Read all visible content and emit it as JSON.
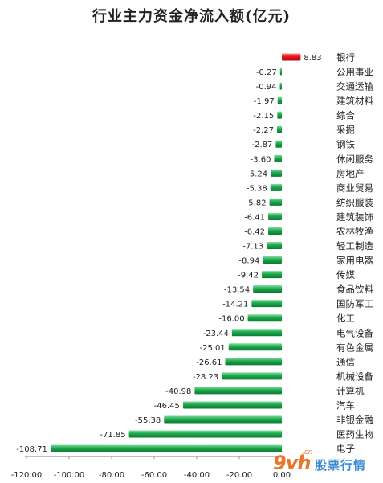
{
  "chart_data": {
    "type": "bar",
    "orientation": "horizontal",
    "title": "行业主力资金净流入额(亿元)",
    "categories": [
      "银行",
      "公用事业",
      "交通运输",
      "建筑材料",
      "综合",
      "采掘",
      "钢铁",
      "休闲服务",
      "房地产",
      "商业贸易",
      "纺织服装",
      "建筑装饰",
      "农林牧渔",
      "轻工制造",
      "家用电器",
      "传媒",
      "食品饮料",
      "国防军工",
      "化工",
      "电气设备",
      "有色金属",
      "通信",
      "机械设备",
      "计算机",
      "汽车",
      "非银金融",
      "医药生物",
      "电子"
    ],
    "values": [
      8.83,
      -0.27,
      -0.94,
      -1.97,
      -2.15,
      -2.27,
      -2.87,
      -3.6,
      -5.24,
      -5.38,
      -5.82,
      -6.41,
      -6.42,
      -7.13,
      -8.94,
      -9.42,
      -13.54,
      -14.21,
      -16.0,
      -23.44,
      -25.01,
      -26.61,
      -28.23,
      -40.98,
      -46.45,
      -55.38,
      -71.85,
      -108.71
    ],
    "value_labels": [
      "8.83",
      "-0.27",
      "-0.94",
      "-1.97",
      "-2.15",
      "-2.27",
      "-2.87",
      "-3.60",
      "-5.24",
      "-5.38",
      "-5.82",
      "-6.41",
      "-6.42",
      "-7.13",
      "-8.94",
      "-9.42",
      "-13.54",
      "-14.21",
      "-16.00",
      "-23.44",
      "-25.01",
      "-26.61",
      "-28.23",
      "-40.98",
      "-46.45",
      "-55.38",
      "-71.85",
      "-108.71"
    ],
    "xlim": [
      -120,
      0
    ],
    "x_ticks": [
      -120,
      -100,
      -80,
      -60,
      -40,
      -20,
      0
    ],
    "x_tick_labels": [
      "-120.00",
      "-100.00",
      "-80.00",
      "-60.00",
      "-40.00",
      "-20.00",
      "0.00"
    ],
    "grid": false,
    "legend": "none",
    "colors": {
      "positive": "#e8141a",
      "negative": "#1aa84a",
      "text": "#222222",
      "axis": "#9a9a9a"
    }
  },
  "watermark": {
    "logo": "9vh",
    "sub": ".cn",
    "text": "股票行情"
  }
}
